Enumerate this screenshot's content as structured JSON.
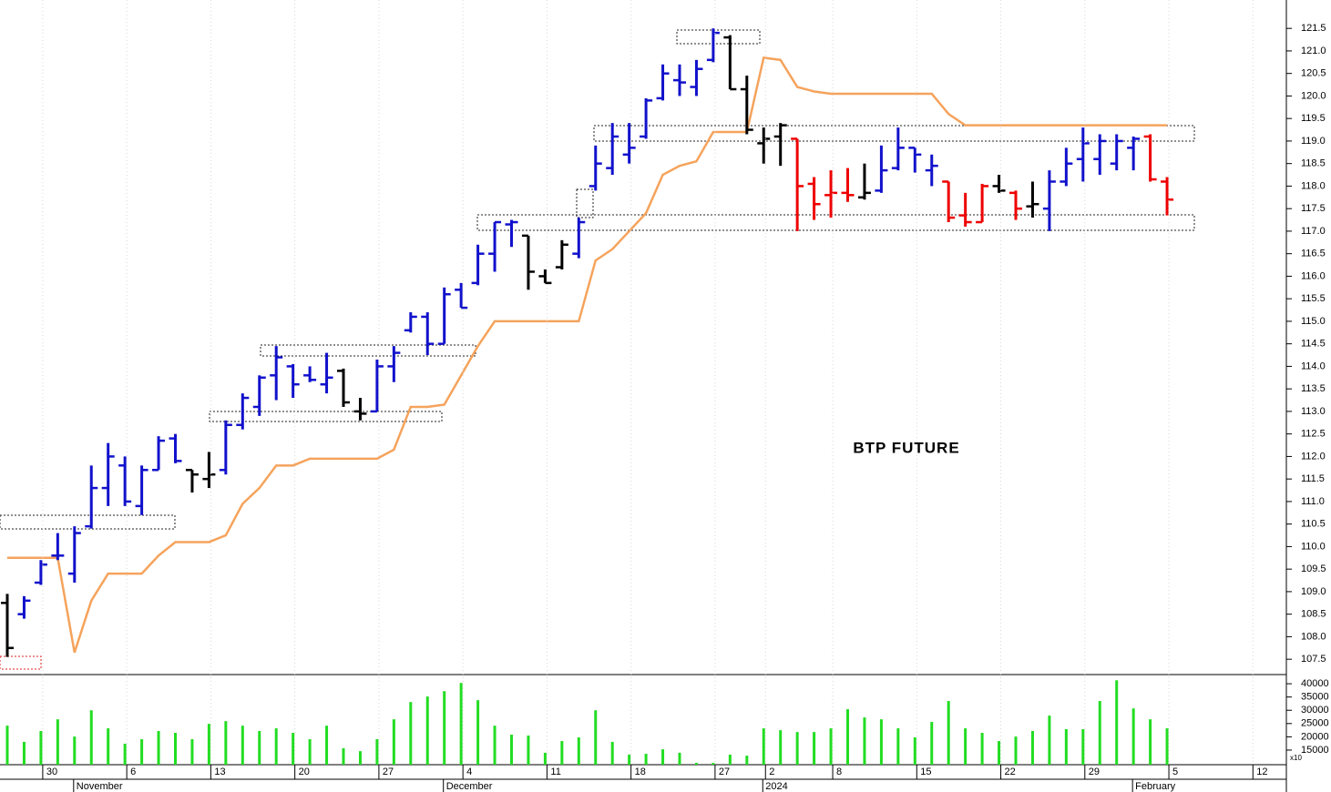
{
  "chart_data": [
    {
      "type": "ohlc",
      "annotation": "BTP FUTURE",
      "ylim": [
        107.18,
        122.13
      ],
      "yticks": [
        107.5,
        {
          "value": 108.0,
          "label": "108.0"
        },
        108.5,
        {
          "value": 109.0,
          "label": "109.0"
        },
        109.5,
        {
          "value": 110.0,
          "label": "110.0"
        },
        110.5,
        {
          "value": 111.0,
          "label": "111.0"
        },
        111.5,
        {
          "value": 112.0,
          "label": "112.0"
        },
        112.5,
        {
          "value": 113.0,
          "label": "113.0"
        },
        113.5,
        {
          "value": 114.0,
          "label": "114.0"
        },
        114.5,
        {
          "value": 115.0,
          "label": "115.0"
        },
        115.5,
        {
          "value": 116.0,
          "label": "116.0"
        },
        116.5,
        {
          "value": 117.0,
          "label": "117.0"
        },
        117.5,
        {
          "value": 118.0,
          "label": "118.0"
        },
        118.5,
        {
          "value": 119.0,
          "label": "119.0"
        },
        119.5,
        {
          "value": 120.0,
          "label": "120.0"
        },
        120.5,
        {
          "value": 121.0,
          "label": "121.0"
        },
        121.5
      ],
      "open": [
        108.75,
        108.5,
        109.2,
        109.8,
        109.4,
        110.45,
        111.3,
        111.8,
        110.9,
        111.7,
        112.4,
        111.7,
        111.5,
        111.7,
        112.7,
        113.1,
        113.8,
        114.0,
        113.8,
        113.6,
        113.9,
        113.0,
        113.0,
        114.0,
        114.8,
        115.1,
        114.5,
        115.7,
        115.85,
        116.5,
        117.15,
        116.9,
        116.0,
        116.2,
        116.5,
        118.0,
        118.4,
        118.7,
        119.1,
        119.95,
        120.35,
        120.2,
        120.8,
        121.3,
        120.15,
        118.95,
        119.1,
        119.05,
        118.05,
        117.8,
        117.85,
        117.75,
        117.9,
        118.4,
        118.85,
        118.35,
        118.1,
        117.35,
        117.2,
        118.0,
        117.85,
        117.55,
        117.5,
        118.1,
        118.6,
        118.6,
        118.5,
        118.85,
        119.1,
        118.1,
        null,
        null,
        null,
        null,
        null
      ],
      "high": [
        108.95,
        108.9,
        109.7,
        110.3,
        110.45,
        111.8,
        112.3,
        112.0,
        111.8,
        112.45,
        112.5,
        111.7,
        112.1,
        112.8,
        113.4,
        113.8,
        114.45,
        114.05,
        114.0,
        114.3,
        113.95,
        113.3,
        114.15,
        114.45,
        115.2,
        115.2,
        115.75,
        115.85,
        116.7,
        117.2,
        117.25,
        116.9,
        116.15,
        116.8,
        117.3,
        118.9,
        119.4,
        119.4,
        119.95,
        120.7,
        120.7,
        120.8,
        121.5,
        121.35,
        120.45,
        119.3,
        119.4,
        119.05,
        118.2,
        118.35,
        118.4,
        118.5,
        118.9,
        119.3,
        118.85,
        118.7,
        118.1,
        117.85,
        118.05,
        118.25,
        117.9,
        118.1,
        118.35,
        118.85,
        119.3,
        119.15,
        119.15,
        119.1,
        119.15,
        118.2,
        null,
        null,
        null,
        null,
        null
      ],
      "low": [
        107.55,
        108.4,
        109.15,
        109.7,
        109.2,
        110.4,
        110.9,
        110.9,
        110.7,
        111.7,
        111.85,
        111.2,
        111.3,
        111.6,
        112.6,
        112.9,
        113.25,
        113.3,
        113.65,
        113.4,
        113.1,
        112.8,
        113.0,
        113.65,
        114.75,
        114.25,
        114.5,
        115.3,
        115.8,
        116.1,
        116.65,
        115.7,
        115.85,
        116.15,
        116.4,
        117.9,
        118.25,
        118.5,
        119.05,
        119.9,
        120.0,
        120.0,
        120.75,
        120.15,
        119.15,
        118.5,
        118.45,
        117.0,
        117.25,
        117.3,
        117.65,
        117.7,
        117.85,
        118.35,
        118.3,
        118.0,
        117.2,
        117.1,
        117.2,
        117.85,
        117.25,
        117.3,
        117.0,
        118.0,
        118.1,
        118.25,
        118.35,
        118.35,
        118.1,
        117.35,
        null,
        null,
        null,
        null,
        null
      ],
      "close": [
        107.75,
        108.8,
        109.6,
        109.8,
        110.3,
        111.3,
        112.0,
        111.0,
        111.7,
        112.35,
        111.9,
        111.6,
        111.6,
        112.7,
        113.3,
        113.75,
        114.2,
        113.6,
        113.7,
        113.75,
        113.2,
        112.95,
        114.0,
        114.3,
        115.1,
        114.5,
        115.6,
        115.3,
        116.5,
        117.2,
        117.2,
        116.1,
        115.85,
        116.7,
        117.2,
        118.5,
        119.1,
        118.85,
        119.9,
        120.5,
        120.3,
        120.6,
        121.4,
        120.15,
        119.25,
        119.05,
        119.35,
        118.0,
        117.6,
        117.85,
        117.8,
        117.85,
        118.35,
        118.85,
        118.7,
        118.45,
        117.3,
        117.2,
        118.0,
        117.9,
        117.5,
        117.6,
        118.1,
        118.5,
        118.95,
        119.0,
        119.0,
        119.05,
        118.15,
        117.7,
        null,
        null,
        null,
        null,
        null
      ],
      "bar_colors": [
        "#000",
        "#11c",
        "#11c",
        "#11c",
        "#11c",
        "#11c",
        "#11c",
        "#11c",
        "#11c",
        "#11c",
        "#11c",
        "#000",
        "#000",
        "#11c",
        "#11c",
        "#11c",
        "#11c",
        "#11c",
        "#11c",
        "#11c",
        "#000",
        "#000",
        "#11c",
        "#11c",
        "#11c",
        "#11c",
        "#11c",
        "#11c",
        "#11c",
        "#11c",
        "#11c",
        "#000",
        "#000",
        "#000",
        "#11c",
        "#11c",
        "#11c",
        "#11c",
        "#11c",
        "#11c",
        "#11c",
        "#11c",
        "#11c",
        "#000",
        "#000",
        "#000",
        "#000",
        "#e00",
        "#e00",
        "#e00",
        "#e00",
        "#000",
        "#11c",
        "#11c",
        "#11c",
        "#11c",
        "#e00",
        "#e00",
        "#e00",
        "#000",
        "#e00",
        "#000",
        "#11c",
        "#11c",
        "#11c",
        "#11c",
        "#11c",
        "#11c",
        "#e00",
        "#e00",
        null,
        null,
        null,
        null,
        null
      ],
      "line": {
        "color": "#f5a35c",
        "values": [
          109.75,
          109.75,
          109.75,
          109.75,
          107.65,
          108.8,
          109.4,
          109.4,
          109.4,
          109.8,
          110.1,
          110.1,
          110.1,
          110.25,
          110.95,
          111.3,
          111.8,
          111.8,
          111.95,
          111.95,
          111.95,
          111.95,
          111.95,
          112.15,
          113.1,
          113.1,
          113.15,
          113.8,
          114.45,
          115.0,
          115.0,
          115.0,
          115.0,
          115.0,
          115.0,
          116.35,
          116.6,
          117.0,
          117.4,
          118.25,
          118.45,
          118.55,
          119.2,
          119.2,
          119.2,
          120.85,
          120.8,
          120.2,
          120.1,
          120.05,
          120.05,
          120.05,
          120.05,
          120.05,
          120.05,
          120.05,
          119.6,
          119.35,
          119.35,
          119.35,
          119.35,
          119.35,
          119.35,
          119.35,
          119.35,
          119.35,
          119.35,
          119.35,
          119.35,
          119.35,
          null,
          null,
          null,
          null,
          null
        ]
      }
    },
    {
      "type": "bar",
      "color": "#22dd22",
      "scale_note": "x10",
      "ylim": [
        9500,
        43800
      ],
      "yticks": [
        15000,
        20000,
        25000,
        30000,
        35000,
        40000
      ],
      "categories": [
        null,
        null,
        "30",
        null,
        null,
        null,
        null,
        "6",
        null,
        null,
        null,
        null,
        "13",
        null,
        null,
        null,
        null,
        "20",
        null,
        null,
        null,
        null,
        "27",
        null,
        null,
        null,
        null,
        "4",
        null,
        null,
        null,
        null,
        "11",
        null,
        null,
        null,
        null,
        "18",
        null,
        null,
        null,
        null,
        "27",
        null,
        null,
        "2",
        null,
        null,
        null,
        "8",
        null,
        null,
        null,
        null,
        "15",
        null,
        null,
        null,
        null,
        "22",
        null,
        null,
        null,
        null,
        "29",
        null,
        null,
        null,
        null,
        "5",
        null,
        null,
        null,
        null,
        "12"
      ],
      "month_categories": [
        null,
        null,
        null,
        null,
        "November",
        null,
        null,
        null,
        null,
        null,
        null,
        null,
        null,
        null,
        null,
        null,
        null,
        null,
        null,
        null,
        null,
        null,
        null,
        null,
        null,
        null,
        "December",
        null,
        null,
        null,
        null,
        null,
        null,
        null,
        null,
        null,
        null,
        null,
        null,
        null,
        null,
        null,
        null,
        null,
        null,
        "2024",
        null,
        null,
        null,
        null,
        null,
        null,
        null,
        null,
        null,
        null,
        null,
        null,
        null,
        null,
        null,
        null,
        null,
        null,
        null,
        null,
        null,
        "February",
        null,
        null,
        null,
        null,
        null,
        null,
        null
      ],
      "values": [
        24200,
        18100,
        22200,
        26600,
        20100,
        30000,
        23200,
        17400,
        19100,
        22200,
        21500,
        19100,
        24900,
        25900,
        24200,
        22200,
        23200,
        21500,
        19100,
        24200,
        15700,
        14600,
        19100,
        26600,
        33100,
        35200,
        37200,
        40300,
        33800,
        24200,
        20800,
        20500,
        14000,
        18400,
        19800,
        30000,
        18100,
        13300,
        13600,
        15300,
        14000,
        10200,
        10200,
        13300,
        12900,
        23200,
        22500,
        21800,
        21800,
        23200,
        30400,
        27300,
        26600,
        23200,
        19800,
        25600,
        33500,
        23200,
        21500,
        18400,
        20100,
        22200,
        28000,
        22900,
        22900,
        33500,
        41300,
        30700,
        26600,
        23200,
        null,
        null,
        null,
        null,
        null
      ]
    }
  ]
}
